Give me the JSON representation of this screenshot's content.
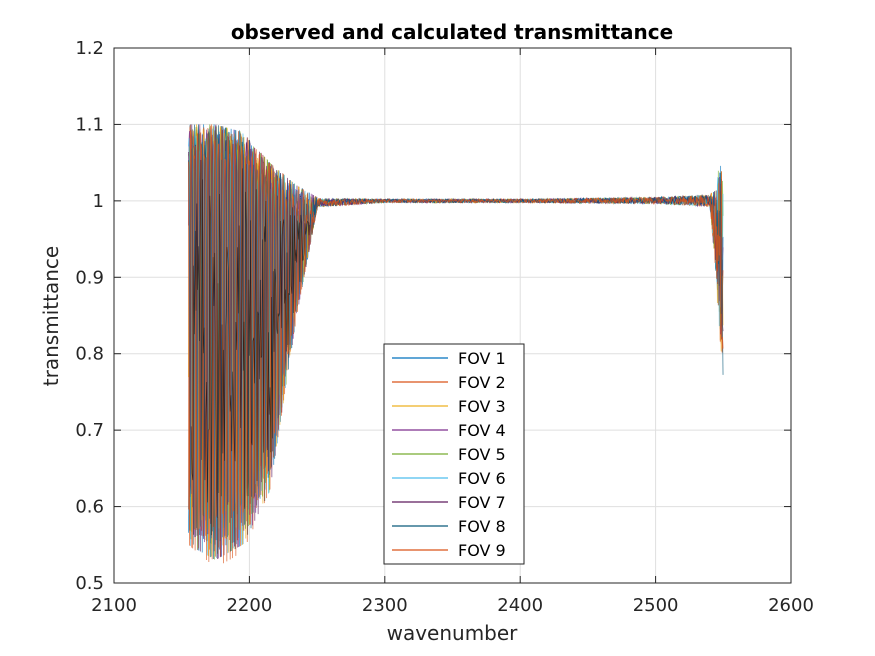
{
  "chart_data": {
    "type": "line",
    "title": "observed and calculated transmittance",
    "xlabel": "wavenumber",
    "ylabel": "transmittance",
    "xlim": [
      2100,
      2600
    ],
    "ylim": [
      0.5,
      1.2
    ],
    "xticks": [
      "2100",
      "2200",
      "2300",
      "2400",
      "2500",
      "2600"
    ],
    "yticks": [
      "0.5",
      "0.6",
      "0.7",
      "0.8",
      "0.9",
      "1",
      "1.1",
      "1.2"
    ],
    "grid": true,
    "legend_position": "bottom-center",
    "series": [
      {
        "name": "FOV 1",
        "color": "#0072bd",
        "x_range": [
          2155,
          2550
        ],
        "envelope": [
          [
            2155,
            0.55,
            1.1
          ],
          [
            2175,
            0.53,
            1.1
          ],
          [
            2195,
            0.55,
            1.09
          ],
          [
            2215,
            0.62,
            1.05
          ],
          [
            2235,
            0.85,
            1.02
          ],
          [
            2250,
            0.99,
            1.005
          ],
          [
            2300,
            0.997,
            1.003
          ],
          [
            2400,
            0.997,
            1.003
          ],
          [
            2500,
            0.995,
            1.006
          ],
          [
            2540,
            0.99,
            1.01
          ],
          [
            2550,
            0.76,
            1.06
          ]
        ]
      },
      {
        "name": "FOV 2",
        "color": "#d95319",
        "x_range": [
          2155,
          2550
        ],
        "envelope": [
          [
            2155,
            0.55,
            1.1
          ],
          [
            2175,
            0.52,
            1.1
          ],
          [
            2195,
            0.54,
            1.09
          ],
          [
            2215,
            0.62,
            1.05
          ],
          [
            2235,
            0.85,
            1.02
          ],
          [
            2250,
            0.99,
            1.005
          ],
          [
            2300,
            0.997,
            1.003
          ],
          [
            2400,
            0.997,
            1.003
          ],
          [
            2500,
            0.995,
            1.006
          ],
          [
            2540,
            0.99,
            1.01
          ],
          [
            2550,
            0.76,
            1.06
          ]
        ]
      },
      {
        "name": "FOV 3",
        "color": "#edb120",
        "x_range": [
          2155,
          2550
        ],
        "envelope": [
          [
            2155,
            0.55,
            1.1
          ],
          [
            2175,
            0.53,
            1.1
          ],
          [
            2195,
            0.55,
            1.09
          ],
          [
            2215,
            0.62,
            1.05
          ],
          [
            2235,
            0.85,
            1.02
          ],
          [
            2250,
            0.99,
            1.005
          ],
          [
            2300,
            0.997,
            1.003
          ],
          [
            2400,
            0.997,
            1.003
          ],
          [
            2500,
            0.995,
            1.006
          ],
          [
            2540,
            0.99,
            1.01
          ],
          [
            2550,
            0.76,
            1.06
          ]
        ]
      },
      {
        "name": "FOV 4",
        "color": "#7e2f8e",
        "x_range": [
          2155,
          2550
        ],
        "envelope": [
          [
            2155,
            0.55,
            1.1
          ],
          [
            2175,
            0.53,
            1.1
          ],
          [
            2195,
            0.55,
            1.09
          ],
          [
            2215,
            0.62,
            1.05
          ],
          [
            2235,
            0.85,
            1.02
          ],
          [
            2250,
            0.99,
            1.005
          ],
          [
            2300,
            0.997,
            1.003
          ],
          [
            2400,
            0.997,
            1.003
          ],
          [
            2500,
            0.995,
            1.006
          ],
          [
            2540,
            0.99,
            1.01
          ],
          [
            2550,
            0.76,
            1.06
          ]
        ]
      },
      {
        "name": "FOV 5",
        "color": "#77ac30",
        "x_range": [
          2155,
          2550
        ],
        "envelope": [
          [
            2155,
            0.55,
            1.1
          ],
          [
            2175,
            0.53,
            1.1
          ],
          [
            2195,
            0.55,
            1.09
          ],
          [
            2215,
            0.62,
            1.05
          ],
          [
            2235,
            0.85,
            1.02
          ],
          [
            2250,
            0.99,
            1.005
          ],
          [
            2300,
            0.997,
            1.003
          ],
          [
            2400,
            0.997,
            1.003
          ],
          [
            2500,
            0.995,
            1.006
          ],
          [
            2540,
            0.99,
            1.01
          ],
          [
            2550,
            0.76,
            1.06
          ]
        ]
      },
      {
        "name": "FOV 6",
        "color": "#4dbeee",
        "x_range": [
          2155,
          2550
        ],
        "envelope": [
          [
            2155,
            0.55,
            1.1
          ],
          [
            2175,
            0.53,
            1.1
          ],
          [
            2195,
            0.55,
            1.09
          ],
          [
            2215,
            0.62,
            1.05
          ],
          [
            2235,
            0.85,
            1.02
          ],
          [
            2250,
            0.99,
            1.005
          ],
          [
            2300,
            0.997,
            1.003
          ],
          [
            2400,
            0.997,
            1.003
          ],
          [
            2500,
            0.995,
            1.006
          ],
          [
            2540,
            0.99,
            1.01
          ],
          [
            2550,
            0.76,
            1.06
          ]
        ]
      },
      {
        "name": "FOV 7",
        "color": "#5e1a5e",
        "x_range": [
          2155,
          2550
        ],
        "envelope": [
          [
            2155,
            0.55,
            1.1
          ],
          [
            2175,
            0.53,
            1.1
          ],
          [
            2195,
            0.55,
            1.09
          ],
          [
            2215,
            0.62,
            1.05
          ],
          [
            2235,
            0.85,
            1.02
          ],
          [
            2250,
            0.99,
            1.005
          ],
          [
            2300,
            0.997,
            1.003
          ],
          [
            2400,
            0.997,
            1.003
          ],
          [
            2500,
            0.995,
            1.006
          ],
          [
            2540,
            0.99,
            1.01
          ],
          [
            2550,
            0.76,
            1.06
          ]
        ]
      },
      {
        "name": "FOV 8",
        "color": "#0a5a7a",
        "x_range": [
          2155,
          2550
        ],
        "envelope": [
          [
            2155,
            0.55,
            1.1
          ],
          [
            2175,
            0.53,
            1.1
          ],
          [
            2195,
            0.55,
            1.09
          ],
          [
            2215,
            0.62,
            1.05
          ],
          [
            2235,
            0.85,
            1.02
          ],
          [
            2250,
            0.99,
            1.005
          ],
          [
            2300,
            0.997,
            1.003
          ],
          [
            2400,
            0.997,
            1.003
          ],
          [
            2500,
            0.995,
            1.006
          ],
          [
            2540,
            0.99,
            1.01
          ],
          [
            2550,
            0.76,
            1.06
          ]
        ]
      },
      {
        "name": "FOV 9",
        "color": "#d95319",
        "x_range": [
          2155,
          2550
        ],
        "envelope": [
          [
            2155,
            0.55,
            1.1
          ],
          [
            2175,
            0.52,
            1.1
          ],
          [
            2195,
            0.54,
            1.09
          ],
          [
            2215,
            0.62,
            1.05
          ],
          [
            2235,
            0.85,
            1.02
          ],
          [
            2250,
            0.99,
            1.005
          ],
          [
            2300,
            0.997,
            1.003
          ],
          [
            2400,
            0.997,
            1.003
          ],
          [
            2500,
            0.995,
            1.006
          ],
          [
            2540,
            0.99,
            1.01
          ],
          [
            2550,
            0.76,
            1.06
          ]
        ]
      }
    ]
  }
}
